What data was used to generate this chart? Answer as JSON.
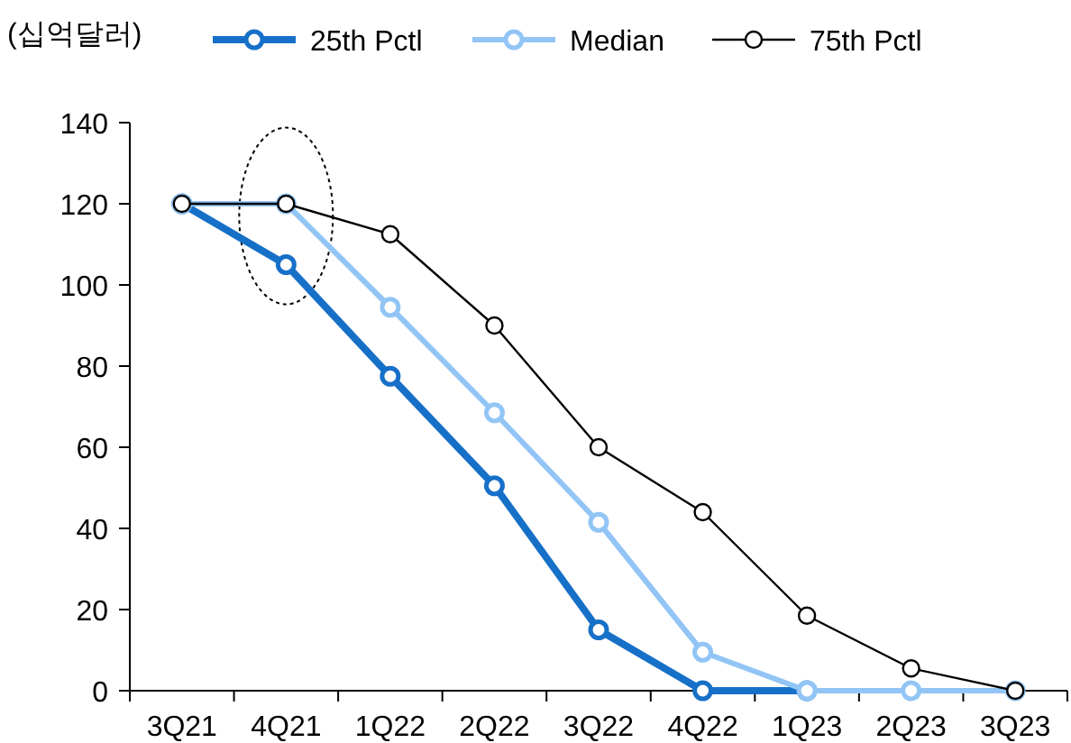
{
  "chart_data": {
    "type": "line",
    "ylabel": "(십억달러)",
    "categories": [
      "3Q21",
      "4Q21",
      "1Q22",
      "2Q22",
      "3Q22",
      "4Q22",
      "1Q23",
      "2Q23",
      "3Q23"
    ],
    "series": [
      {
        "name": "25th Pctl",
        "color": "#1770c8",
        "values": [
          120,
          105,
          77.5,
          50.5,
          15,
          0,
          0,
          null,
          null
        ]
      },
      {
        "name": "Median",
        "color": "#92c5f5",
        "values": [
          120,
          120,
          94.5,
          68.5,
          41.5,
          9.5,
          0,
          0,
          0
        ]
      },
      {
        "name": "75th Pctl",
        "color": "#000000",
        "values": [
          120,
          120,
          112.5,
          90,
          60,
          44,
          18.5,
          5.5,
          0
        ]
      }
    ],
    "ylim": [
      0,
      140
    ],
    "yticks": [
      0,
      20,
      40,
      60,
      80,
      100,
      120,
      140
    ],
    "grid": false,
    "legend": "top",
    "marker": "circle",
    "line_style": "solid"
  }
}
